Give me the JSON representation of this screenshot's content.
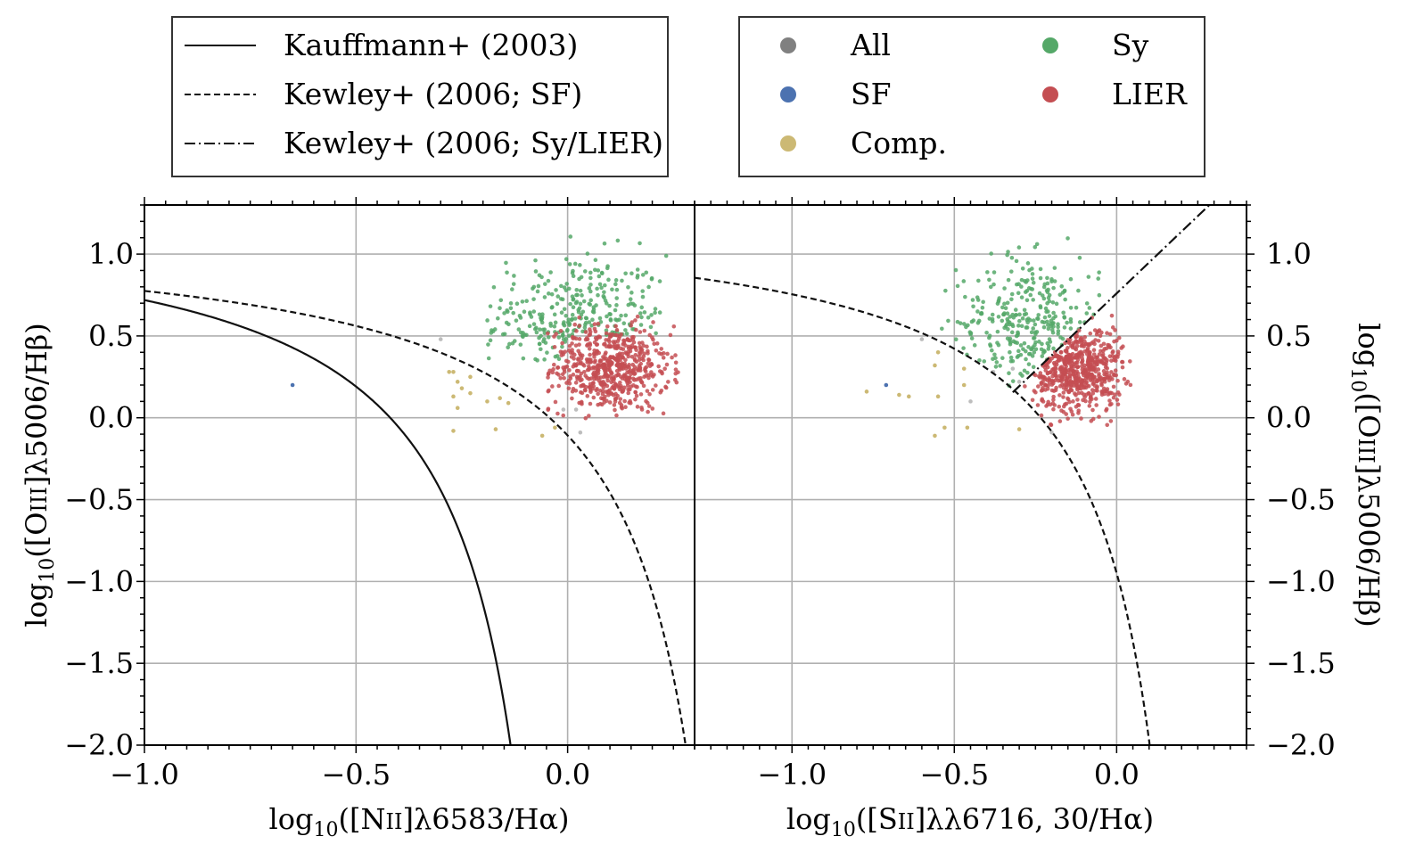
{
  "legends": {
    "lines": [
      {
        "label": "Kauffmann+ (2003)",
        "style": "solid"
      },
      {
        "label": "Kewley+ (2006; SF)",
        "style": "dashed"
      },
      {
        "label": "Kewley+ (2006; Sy/LIER)",
        "style": "dashdot"
      }
    ],
    "classes": [
      {
        "label": "All",
        "color": "#808080"
      },
      {
        "label": "Sy",
        "color": "#55a868"
      },
      {
        "label": "SF",
        "color": "#4c72b0"
      },
      {
        "label": "LIER",
        "color": "#c44e52"
      },
      {
        "label": "Comp.",
        "color": "#ccb974"
      }
    ]
  },
  "chart_data": [
    {
      "type": "scatter",
      "title": "",
      "xlabel": "log10([NII]λ6583/Hα)",
      "ylabel": "log10([OIII]λ5006/Hβ)",
      "xlim": [
        -1.0,
        0.3
      ],
      "ylim": [
        -2.0,
        1.3
      ],
      "xticks": [
        "−1.0",
        "−0.5",
        "0.0"
      ],
      "yticks": [
        "−2.0",
        "−1.5",
        "−1.0",
        "−0.5",
        "0.0",
        "0.5",
        "1.0"
      ],
      "grid": true,
      "curves": [
        {
          "name": "Kauffmann+ (2003)",
          "style": "solid",
          "formula": "0.61/(x-0.05)+1.3",
          "x_range": [
            -1.0,
            -0.135
          ]
        },
        {
          "name": "Kewley+ (2006; SF)",
          "style": "dashed",
          "formula": "0.61/(x-0.47)+1.19",
          "x_range": [
            -1.0,
            0.28
          ]
        }
      ],
      "series": [
        {
          "name": "Sy",
          "color": "#55a868",
          "approx_points": 300,
          "x_center": 0.02,
          "y_center": 0.6
        },
        {
          "name": "LIER",
          "color": "#c44e52",
          "approx_points": 600,
          "x_center": 0.1,
          "y_center": 0.3
        },
        {
          "name": "Comp.",
          "color": "#ccb974",
          "points": [
            [
              -0.27,
              0.13
            ],
            [
              -0.25,
              0.18
            ],
            [
              -0.26,
              0.22
            ],
            [
              -0.23,
              0.25
            ],
            [
              -0.27,
              0.28
            ],
            [
              -0.26,
              0.06
            ],
            [
              -0.23,
              0.15
            ],
            [
              -0.19,
              0.1
            ],
            [
              -0.16,
              0.12
            ],
            [
              -0.14,
              0.09
            ],
            [
              -0.27,
              -0.08
            ],
            [
              -0.17,
              -0.07
            ],
            [
              -0.06,
              -0.11
            ],
            [
              -0.03,
              -0.06
            ],
            [
              -0.28,
              0.28
            ]
          ]
        },
        {
          "name": "SF",
          "color": "#4c72b0",
          "points": [
            [
              -0.65,
              0.2
            ]
          ]
        },
        {
          "name": "All",
          "color": "#bdbdbd",
          "points": [
            [
              -0.3,
              0.48
            ],
            [
              -0.01,
              0.05
            ],
            [
              0.03,
              -0.09
            ],
            [
              0.02,
              0.05
            ]
          ]
        }
      ]
    },
    {
      "type": "scatter",
      "title": "",
      "xlabel": "log10([SII]λλ6716, 30/Hα)",
      "ylabel": "log10([OIII]λ5006/Hβ)",
      "xlim": [
        -1.3,
        0.4
      ],
      "ylim": [
        -2.0,
        1.3
      ],
      "xticks": [
        "−1.0",
        "−0.5",
        "0.0"
      ],
      "yticks": [
        "−2.0",
        "−1.5",
        "−1.0",
        "−0.5",
        "0.0",
        "0.5",
        "1.0"
      ],
      "grid": true,
      "curves": [
        {
          "name": "Kewley+ (2006; SF)",
          "style": "dashed",
          "formula": "0.72/(x-0.32)+1.30",
          "x_range": [
            -1.3,
            0.1
          ]
        },
        {
          "name": "Kewley+ (2006; Sy/LIER)",
          "style": "dashdot",
          "formula": "1.89x+0.76",
          "x_range": [
            -0.32,
            0.28
          ]
        }
      ],
      "series": [
        {
          "name": "Sy",
          "color": "#55a868",
          "approx_points": 300,
          "x_center": -0.27,
          "y_center": 0.58
        },
        {
          "name": "LIER",
          "color": "#c44e52",
          "approx_points": 600,
          "x_center": -0.12,
          "y_center": 0.3
        },
        {
          "name": "Comp.",
          "color": "#ccb974",
          "points": [
            [
              -0.77,
              0.16
            ],
            [
              -0.67,
              0.14
            ],
            [
              -0.64,
              0.13
            ],
            [
              -0.55,
              0.13
            ],
            [
              -0.56,
              0.32
            ],
            [
              -0.56,
              -0.11
            ],
            [
              -0.53,
              -0.06
            ],
            [
              -0.46,
              -0.06
            ],
            [
              -0.3,
              -0.07
            ],
            [
              -0.47,
              0.2
            ],
            [
              -0.47,
              0.3
            ],
            [
              -0.55,
              0.4
            ]
          ]
        },
        {
          "name": "SF",
          "color": "#4c72b0",
          "points": [
            [
              -0.71,
              0.2
            ]
          ]
        },
        {
          "name": "All",
          "color": "#bdbdbd",
          "points": [
            [
              -0.6,
              0.48
            ],
            [
              -0.45,
              0.1
            ],
            [
              -0.38,
              0.28
            ],
            [
              -0.32,
              0.3
            ],
            [
              -0.3,
              0.22
            ],
            [
              -0.2,
              -0.09
            ]
          ]
        }
      ]
    }
  ]
}
